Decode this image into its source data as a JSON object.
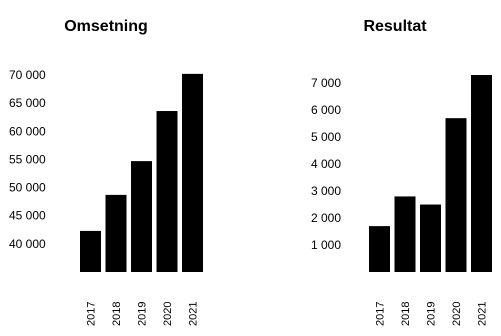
{
  "chart_data": [
    {
      "type": "bar",
      "title": "Omsetning",
      "categories": [
        "2017",
        "2018",
        "2019",
        "2020",
        "2021"
      ],
      "values": [
        42300,
        48700,
        54700,
        63600,
        70200
      ],
      "ylim": [
        35000,
        70000
      ],
      "yticks": [
        "70 000",
        "65 000",
        "60 000",
        "55 000",
        "50 000",
        "45 000",
        "40 000"
      ],
      "ytick_values": [
        70000,
        65000,
        60000,
        55000,
        50000,
        45000,
        40000
      ],
      "bar_color": "#000000",
      "grid": false
    },
    {
      "type": "bar",
      "title": "Resultat",
      "categories": [
        "2017",
        "2018",
        "2019",
        "2020",
        "2021"
      ],
      "values": [
        1700,
        2800,
        2500,
        5700,
        7300
      ],
      "ylim": [
        0,
        7300
      ],
      "yticks": [
        "7 000",
        "6 000",
        "5 000",
        "4 000",
        "3 000",
        "2 000",
        "1 000"
      ],
      "ytick_values": [
        7000,
        6000,
        5000,
        4000,
        3000,
        2000,
        1000
      ],
      "bar_color": "#000000",
      "grid": false
    }
  ]
}
